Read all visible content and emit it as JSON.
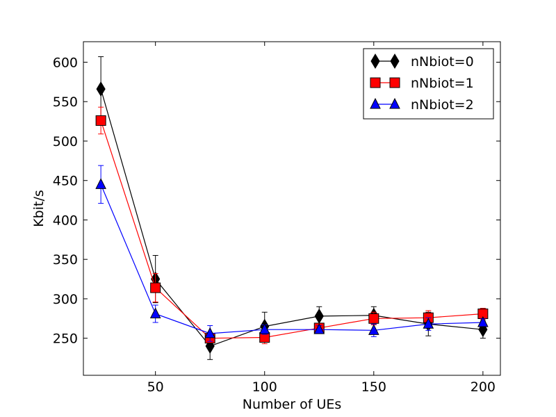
{
  "chart_data": {
    "type": "line",
    "title": "",
    "xlabel": "Number of UEs",
    "ylabel": "Kbit/s",
    "xlim": [
      17,
      208
    ],
    "ylim": [
      203,
      626
    ],
    "xticks": [
      50,
      100,
      150,
      200
    ],
    "yticks": [
      250,
      300,
      350,
      400,
      450,
      500,
      550,
      600
    ],
    "grid": false,
    "legend_position": "upper right",
    "x": [
      25,
      50,
      75,
      100,
      125,
      150,
      175,
      200
    ],
    "series": [
      {
        "name": "nNbiot=0",
        "color": "#000000",
        "marker": "diamond",
        "values": [
          566,
          325,
          240,
          265,
          278,
          279,
          268,
          261
        ],
        "errors": [
          41,
          30,
          17,
          18,
          12,
          11,
          15,
          11
        ]
      },
      {
        "name": "nNbiot=1",
        "color": "#ff0000",
        "marker": "square",
        "values": [
          526,
          314,
          250,
          251,
          263,
          275,
          276,
          281
        ],
        "errors": [
          17,
          18,
          6,
          8,
          6,
          8,
          9,
          7
        ]
      },
      {
        "name": "nNbiot=2",
        "color": "#0000ff",
        "marker": "triangle",
        "values": [
          445,
          281,
          256,
          261,
          261,
          260,
          268,
          270
        ],
        "errors": [
          24,
          11,
          10,
          6,
          5,
          8,
          8,
          5
        ]
      }
    ]
  }
}
